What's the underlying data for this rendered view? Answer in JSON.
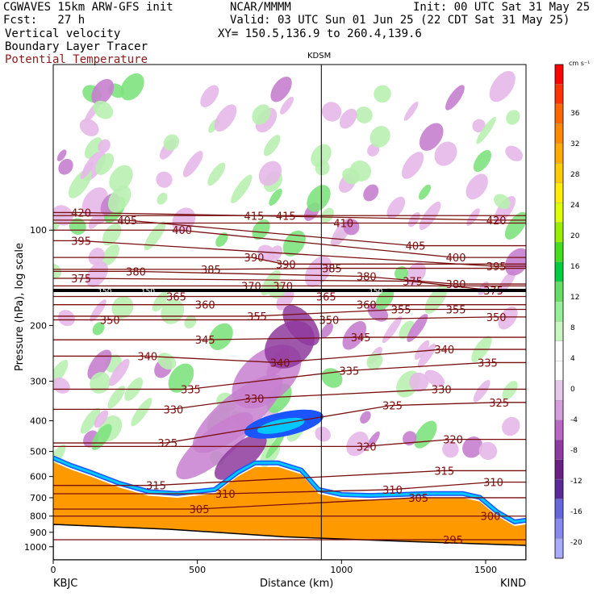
{
  "header": {
    "model": "CGWAVES 15km ARW-GFS init",
    "center": "NCAR/MMMM",
    "init": "Init: 00 UTC Sat 31 May 25",
    "fcst": "Fcst:   27 h",
    "valid": "Valid: 03 UTC Sun 01 Jun 25 (22 CDT Sat 31 May 25)",
    "field1": "Vertical velocity",
    "field2": "Boundary Layer Tracer",
    "field3": "Potential Temperature",
    "xy": "XY= 150.5,136.9 to 260.4,139.6",
    "marker_label": "KDSM",
    "left_station": "KBJC",
    "right_station": "KIND"
  },
  "colors": {
    "theta_line": "#7a0f0f",
    "tropopause": "#000000",
    "terrain": "#ff9900",
    "tracer_blue": "#1a55ff",
    "tracer_cyan": "#00c8ff",
    "updraft_light": "#b8f0b0",
    "updraft_mid": "#7ee27e",
    "downdraft_light": "#e6b8e8",
    "downdraft_mid": "#c77fcf",
    "downdraft_dark": "#8e3a9e"
  },
  "chart_data": {
    "type": "heatmap",
    "title": "Vertical velocity / Boundary Layer Tracer / Potential Temperature",
    "xlabel": "Distance (km)",
    "ylabel": "Pressure (hPa), log scale",
    "x_ticks": [
      0,
      500,
      1000,
      1500
    ],
    "y_ticks": [
      100,
      200,
      300,
      400,
      500,
      600,
      700,
      800,
      900,
      1000
    ],
    "xlim": [
      0,
      1640
    ],
    "ylim": [
      1100,
      30
    ],
    "y_scale": "log",
    "marker_x_km": 930,
    "colorbar": {
      "unit": "cm s⁻¹",
      "labels": [
        36,
        32,
        28,
        24,
        20,
        16,
        12,
        8,
        4,
        0,
        -4,
        -8,
        -12,
        -16,
        -20
      ],
      "colors": [
        "#ff0000",
        "#ff3300",
        "#ff6600",
        "#ff8800",
        "#ffaa00",
        "#ffcc00",
        "#ffee00",
        "#ddff00",
        "#99ee00",
        "#44dd22",
        "#00cc44",
        "#66dd66",
        "#99ee99",
        "#c8f5c0",
        "#ffffff",
        "#ffffff",
        "#e8c8ea",
        "#d49edb",
        "#b768c2",
        "#8e3a9e",
        "#6a2080",
        "#5a2a9a",
        "#6666dd",
        "#8888ee",
        "#aaaaff"
      ]
    },
    "theta_labels": [
      {
        "label": "420",
        "x": 90,
        "p": 88
      },
      {
        "label": "405",
        "x": 250,
        "p": 93
      },
      {
        "label": "415",
        "x": 690,
        "p": 90
      },
      {
        "label": "415",
        "x": 800,
        "p": 90
      },
      {
        "label": "410",
        "x": 1000,
        "p": 95
      },
      {
        "label": "420",
        "x": 1530,
        "p": 93
      },
      {
        "label": "395",
        "x": 90,
        "p": 108
      },
      {
        "label": "400",
        "x": 440,
        "p": 100
      },
      {
        "label": "405",
        "x": 1250,
        "p": 112
      },
      {
        "label": "400",
        "x": 1390,
        "p": 122
      },
      {
        "label": "395",
        "x": 1530,
        "p": 130
      },
      {
        "label": "390",
        "x": 690,
        "p": 122
      },
      {
        "label": "390",
        "x": 800,
        "p": 128
      },
      {
        "label": "385",
        "x": 540,
        "p": 133
      },
      {
        "label": "385",
        "x": 960,
        "p": 132
      },
      {
        "label": "380",
        "x": 280,
        "p": 135
      },
      {
        "label": "380",
        "x": 1080,
        "p": 140
      },
      {
        "label": "380",
        "x": 1390,
        "p": 148
      },
      {
        "label": "375",
        "x": 90,
        "p": 142
      },
      {
        "label": "375",
        "x": 1240,
        "p": 145
      },
      {
        "label": "375",
        "x": 1520,
        "p": 155
      },
      {
        "label": "370",
        "x": 680,
        "p": 150
      },
      {
        "label": "370",
        "x": 790,
        "p": 150
      },
      {
        "label": "365",
        "x": 420,
        "p": 162
      },
      {
        "label": "365",
        "x": 940,
        "p": 162
      },
      {
        "label": "360",
        "x": 520,
        "p": 172
      },
      {
        "label": "360",
        "x": 1080,
        "p": 172
      },
      {
        "label": "355",
        "x": 700,
        "p": 187
      },
      {
        "label": "355",
        "x": 1200,
        "p": 178
      },
      {
        "label": "355",
        "x": 1390,
        "p": 178
      },
      {
        "label": "350",
        "x": 190,
        "p": 192
      },
      {
        "label": "350",
        "x": 950,
        "p": 192
      },
      {
        "label": "350",
        "x": 1530,
        "p": 188
      },
      {
        "label": "345",
        "x": 520,
        "p": 222
      },
      {
        "label": "345",
        "x": 1060,
        "p": 218
      },
      {
        "label": "340",
        "x": 320,
        "p": 250
      },
      {
        "label": "340",
        "x": 780,
        "p": 262
      },
      {
        "label": "340",
        "x": 1350,
        "p": 238
      },
      {
        "label": "335",
        "x": 470,
        "p": 318
      },
      {
        "label": "335",
        "x": 1020,
        "p": 278
      },
      {
        "label": "335",
        "x": 1500,
        "p": 262
      },
      {
        "label": "330",
        "x": 410,
        "p": 368
      },
      {
        "label": "330",
        "x": 690,
        "p": 340
      },
      {
        "label": "330",
        "x": 1340,
        "p": 318
      },
      {
        "label": "325",
        "x": 390,
        "p": 470
      },
      {
        "label": "325",
        "x": 1170,
        "p": 358
      },
      {
        "label": "325",
        "x": 1540,
        "p": 350
      },
      {
        "label": "320",
        "x": 1080,
        "p": 482
      },
      {
        "label": "320",
        "x": 1380,
        "p": 458
      },
      {
        "label": "315",
        "x": 350,
        "p": 640
      },
      {
        "label": "315",
        "x": 1350,
        "p": 575
      },
      {
        "label": "310",
        "x": 590,
        "p": 680
      },
      {
        "label": "310",
        "x": 1170,
        "p": 660
      },
      {
        "label": "310",
        "x": 1520,
        "p": 625
      },
      {
        "label": "305",
        "x": 500,
        "p": 760
      },
      {
        "label": "305",
        "x": 1260,
        "p": 700
      },
      {
        "label": "300",
        "x": 1510,
        "p": 800
      },
      {
        "label": "295",
        "x": 1380,
        "p": 950
      }
    ],
    "tropopause_labels": [
      {
        "label": "150",
        "x": 180,
        "p": 158
      },
      {
        "label": "150",
        "x": 330,
        "p": 158
      },
      {
        "label": "150",
        "x": 1120,
        "p": 158
      }
    ]
  }
}
